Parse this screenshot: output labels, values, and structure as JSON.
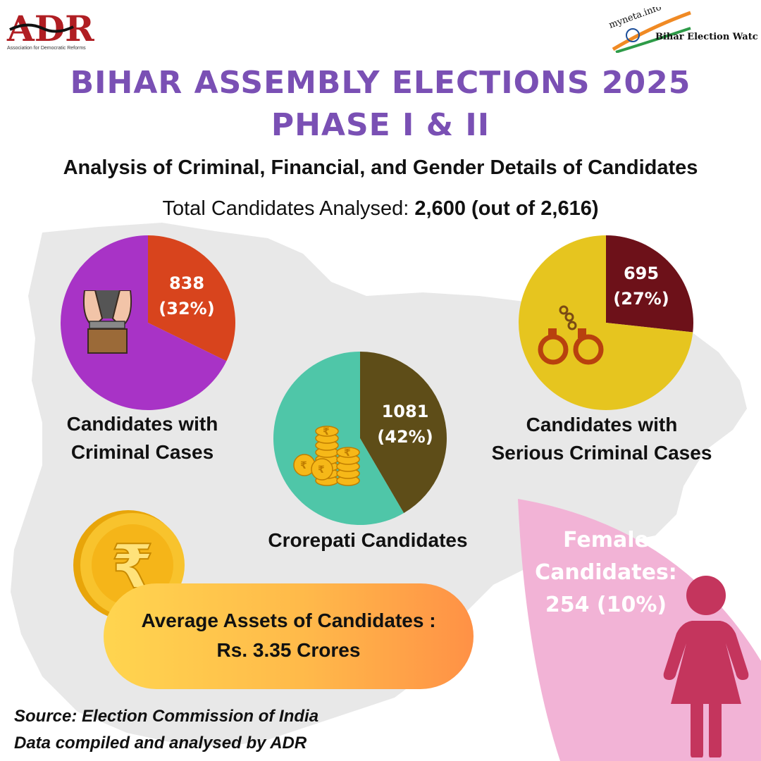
{
  "header": {
    "adr_logo_text": "ADR",
    "adr_logo_tagline": "Association for Democratic Reforms",
    "myneta_logo_text": "myneta.info",
    "myneta_logo_caption": "Bihar Election Watch",
    "title_line1": "BIHAR ASSEMBLY ELECTIONS 2025",
    "title_line2": "PHASE I & II",
    "subtitle": "Analysis of Criminal, Financial, and Gender Details of Candidates",
    "total_label": "Total Candidates Analysed:",
    "total_value": "2,600 (out of 2,616)"
  },
  "chart_data": [
    {
      "type": "pie",
      "title_line1": "Candidates with",
      "title_line2": "Criminal Cases",
      "values": [
        838,
        1762
      ],
      "labels": [
        "(32%)",
        ""
      ],
      "colors": [
        "#d8441d",
        "#a833c6"
      ]
    },
    {
      "type": "pie",
      "title_line1": "Candidates with",
      "title_line2": "Serious Criminal Cases",
      "values": [
        695,
        1905
      ],
      "labels": [
        "(27%)",
        ""
      ],
      "colors": [
        "#6d1119",
        "#e6c51f"
      ]
    },
    {
      "type": "pie",
      "title_line1": "Crorepati Candidates",
      "values": [
        1081,
        1519
      ],
      "labels": [
        "(42%)",
        ""
      ],
      "colors": [
        "#5e4d18",
        "#4fc6a8"
      ]
    }
  ],
  "assets": {
    "label": "Average Assets of Candidates :",
    "value": "Rs. 3.35 Crores"
  },
  "female": {
    "label_line1": "Female",
    "label_line2": "Candidates:",
    "value": "254 (10%)"
  },
  "footer": {
    "source_line1": "Source: Election Commission of India",
    "source_line2": "Data compiled and analysed by ADR"
  }
}
